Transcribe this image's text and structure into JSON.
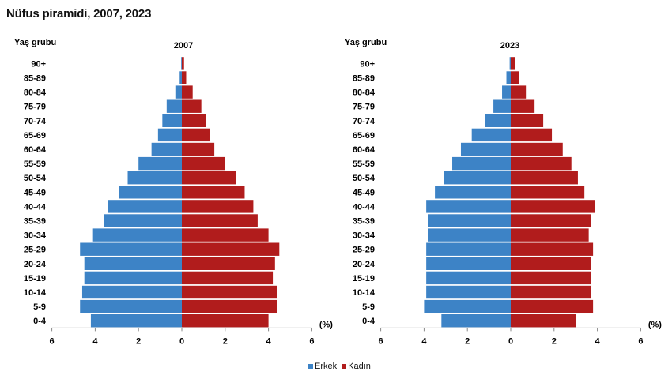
{
  "title": "Nüfus piramidi, 2007, 2023",
  "colors": {
    "male": "#3d83c6",
    "female": "#b11c1c",
    "axis": "#888888",
    "text": "#111111"
  },
  "legend": {
    "male": "Erkek",
    "female": "Kadın"
  },
  "chart_data": [
    {
      "type": "bar",
      "orientation": "horizontal-pyramid",
      "title": "2007",
      "ylabel": "Yaş grubu",
      "xlabel": "(%)",
      "xlim": [
        -6,
        6
      ],
      "xticks": [
        "6",
        "4",
        "2",
        "0",
        "2",
        "4",
        "6"
      ],
      "categories": [
        "0-4",
        "5-9",
        "10-14",
        "15-19",
        "20-24",
        "25-29",
        "30-34",
        "35-39",
        "40-44",
        "45-49",
        "50-54",
        "55-59",
        "60-64",
        "65-69",
        "70-74",
        "75-79",
        "80-84",
        "85-89",
        "90+"
      ],
      "series": [
        {
          "name": "Erkek",
          "values": [
            4.2,
            4.7,
            4.6,
            4.5,
            4.5,
            4.7,
            4.1,
            3.6,
            3.4,
            2.9,
            2.5,
            2.0,
            1.4,
            1.1,
            0.9,
            0.7,
            0.3,
            0.1,
            0.03
          ]
        },
        {
          "name": "Kadın",
          "values": [
            4.0,
            4.4,
            4.4,
            4.2,
            4.3,
            4.5,
            4.0,
            3.5,
            3.3,
            2.9,
            2.5,
            2.0,
            1.5,
            1.3,
            1.1,
            0.9,
            0.5,
            0.2,
            0.1
          ]
        }
      ]
    },
    {
      "type": "bar",
      "orientation": "horizontal-pyramid",
      "title": "2023",
      "ylabel": "Yaş grubu",
      "xlabel": "(%)",
      "xlim": [
        -6,
        6
      ],
      "xticks": [
        "6",
        "4",
        "2",
        "0",
        "2",
        "4",
        "6"
      ],
      "categories": [
        "0-4",
        "5-9",
        "10-14",
        "15-19",
        "20-24",
        "25-29",
        "30-34",
        "35-39",
        "40-44",
        "45-49",
        "50-54",
        "55-59",
        "60-64",
        "65-69",
        "70-74",
        "75-79",
        "80-84",
        "85-89",
        "90+"
      ],
      "series": [
        {
          "name": "Erkek",
          "values": [
            3.2,
            4.0,
            3.9,
            3.9,
            3.9,
            3.9,
            3.8,
            3.8,
            3.9,
            3.5,
            3.1,
            2.7,
            2.3,
            1.8,
            1.2,
            0.8,
            0.4,
            0.2,
            0.05
          ]
        },
        {
          "name": "Kadın",
          "values": [
            3.0,
            3.8,
            3.7,
            3.7,
            3.7,
            3.8,
            3.6,
            3.7,
            3.9,
            3.4,
            3.1,
            2.8,
            2.4,
            1.9,
            1.5,
            1.1,
            0.7,
            0.4,
            0.2
          ]
        }
      ]
    }
  ]
}
